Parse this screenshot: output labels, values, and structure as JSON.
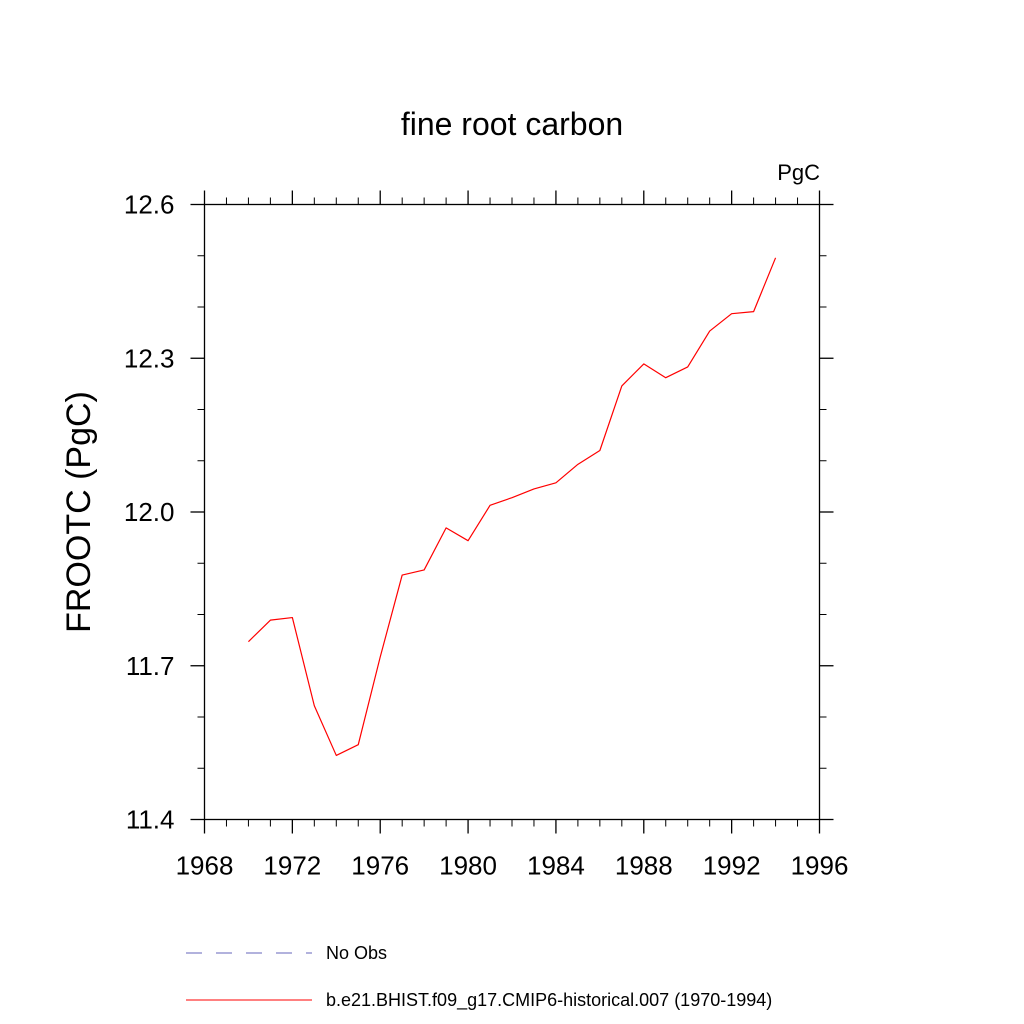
{
  "chart_data": {
    "type": "line",
    "title": "fine root carbon",
    "units": "PgC",
    "ylabel": "FROOTC  (PgC)",
    "xlabel": "",
    "xlim": [
      1968,
      1996
    ],
    "ylim": [
      11.4,
      12.6
    ],
    "xticks": [
      1968,
      1972,
      1976,
      1980,
      1984,
      1988,
      1992,
      1996
    ],
    "xtick_labels": [
      "1968",
      "1972",
      "1976",
      "1980",
      "1984",
      "1988",
      "1992",
      "1996"
    ],
    "x_minor_step": 1,
    "yticks": [
      11.4,
      11.7,
      12.0,
      12.3,
      12.6
    ],
    "ytick_labels": [
      "11.4",
      "11.7",
      "12.0",
      "12.3",
      "12.6"
    ],
    "y_minor_step": 0.1,
    "grid": false,
    "series": [
      {
        "name": "b.e21.BHIST.f09_g17.CMIP6-historical.007 (1970-1994)",
        "color": "#ff0000",
        "dash": "solid",
        "x": [
          1970,
          1971,
          1972,
          1973,
          1974,
          1975,
          1976,
          1977,
          1978,
          1979,
          1980,
          1981,
          1982,
          1983,
          1984,
          1985,
          1986,
          1987,
          1988,
          1989,
          1990,
          1991,
          1992,
          1993,
          1994
        ],
        "values": [
          11.747,
          11.789,
          11.794,
          11.622,
          11.525,
          11.546,
          11.717,
          11.877,
          11.887,
          11.969,
          11.944,
          12.013,
          12.028,
          12.045,
          12.057,
          12.093,
          12.12,
          12.246,
          12.289,
          12.262,
          12.283,
          12.353,
          12.387,
          12.391,
          12.496
        ]
      }
    ],
    "legend": [
      {
        "label": "No Obs",
        "color": "#6666bb",
        "dash": "dashed"
      },
      {
        "label": "b.e21.BHIST.f09_g17.CMIP6-historical.007 (1970-1994)",
        "color": "#ff0000",
        "dash": "solid"
      }
    ],
    "legend_position": "bottom"
  }
}
